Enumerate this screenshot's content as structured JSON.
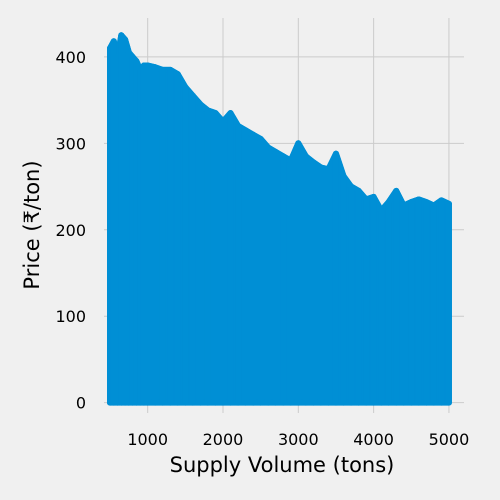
{
  "chart_data": {
    "type": "area",
    "title": "",
    "xlabel": "Supply Volume (tons)",
    "ylabel": "Price (₹/ton)",
    "xlim": [
      420,
      5200
    ],
    "ylim": [
      -12,
      445
    ],
    "x_ticks": [
      1000,
      2000,
      3000,
      4000,
      5000
    ],
    "x_tick_labels": [
      "1000",
      "2000",
      "3000",
      "4000",
      "5000"
    ],
    "y_ticks": [
      0,
      100,
      200,
      300,
      400
    ],
    "y_tick_labels": [
      "0",
      "100",
      "200",
      "300",
      "400"
    ],
    "grid": true,
    "legend": "none",
    "colors": {
      "series": "#008fd5",
      "background": "#f0f0f0",
      "grid": "#cbcbcb"
    },
    "series": [
      {
        "x": [
          500,
          550,
          600,
          650,
          700,
          750,
          800,
          850,
          900,
          950,
          1000,
          1100,
          1200,
          1300,
          1400,
          1500,
          1600,
          1700,
          1800,
          1900,
          2000,
          2100,
          2200,
          2300,
          2400,
          2500,
          2600,
          2700,
          2800,
          2900,
          3000,
          3100,
          3200,
          3300,
          3400,
          3500,
          3600,
          3700,
          3800,
          3900,
          4000,
          4100,
          4200,
          4300,
          4400,
          4500,
          4600,
          4700,
          4800,
          4900,
          5000
        ],
        "y_max": [
          410,
          418,
          400,
          425,
          420,
          405,
          400,
          395,
          385,
          390,
          390,
          388,
          385,
          385,
          380,
          365,
          355,
          345,
          338,
          335,
          325,
          335,
          320,
          315,
          310,
          305,
          295,
          290,
          285,
          280,
          300,
          285,
          278,
          272,
          270,
          288,
          262,
          250,
          245,
          235,
          238,
          222,
          232,
          245,
          228,
          232,
          235,
          232,
          228,
          234,
          230
        ],
        "y_min": [
          0,
          0,
          0,
          0,
          0,
          0,
          0,
          0,
          0,
          0,
          0,
          0,
          0,
          0,
          0,
          0,
          0,
          0,
          0,
          0,
          0,
          0,
          0,
          0,
          0,
          0,
          0,
          0,
          0,
          0,
          0,
          0,
          0,
          0,
          0,
          0,
          0,
          0,
          0,
          0,
          0,
          0,
          0,
          0,
          0,
          0,
          0,
          0,
          0,
          0,
          0
        ]
      }
    ]
  }
}
